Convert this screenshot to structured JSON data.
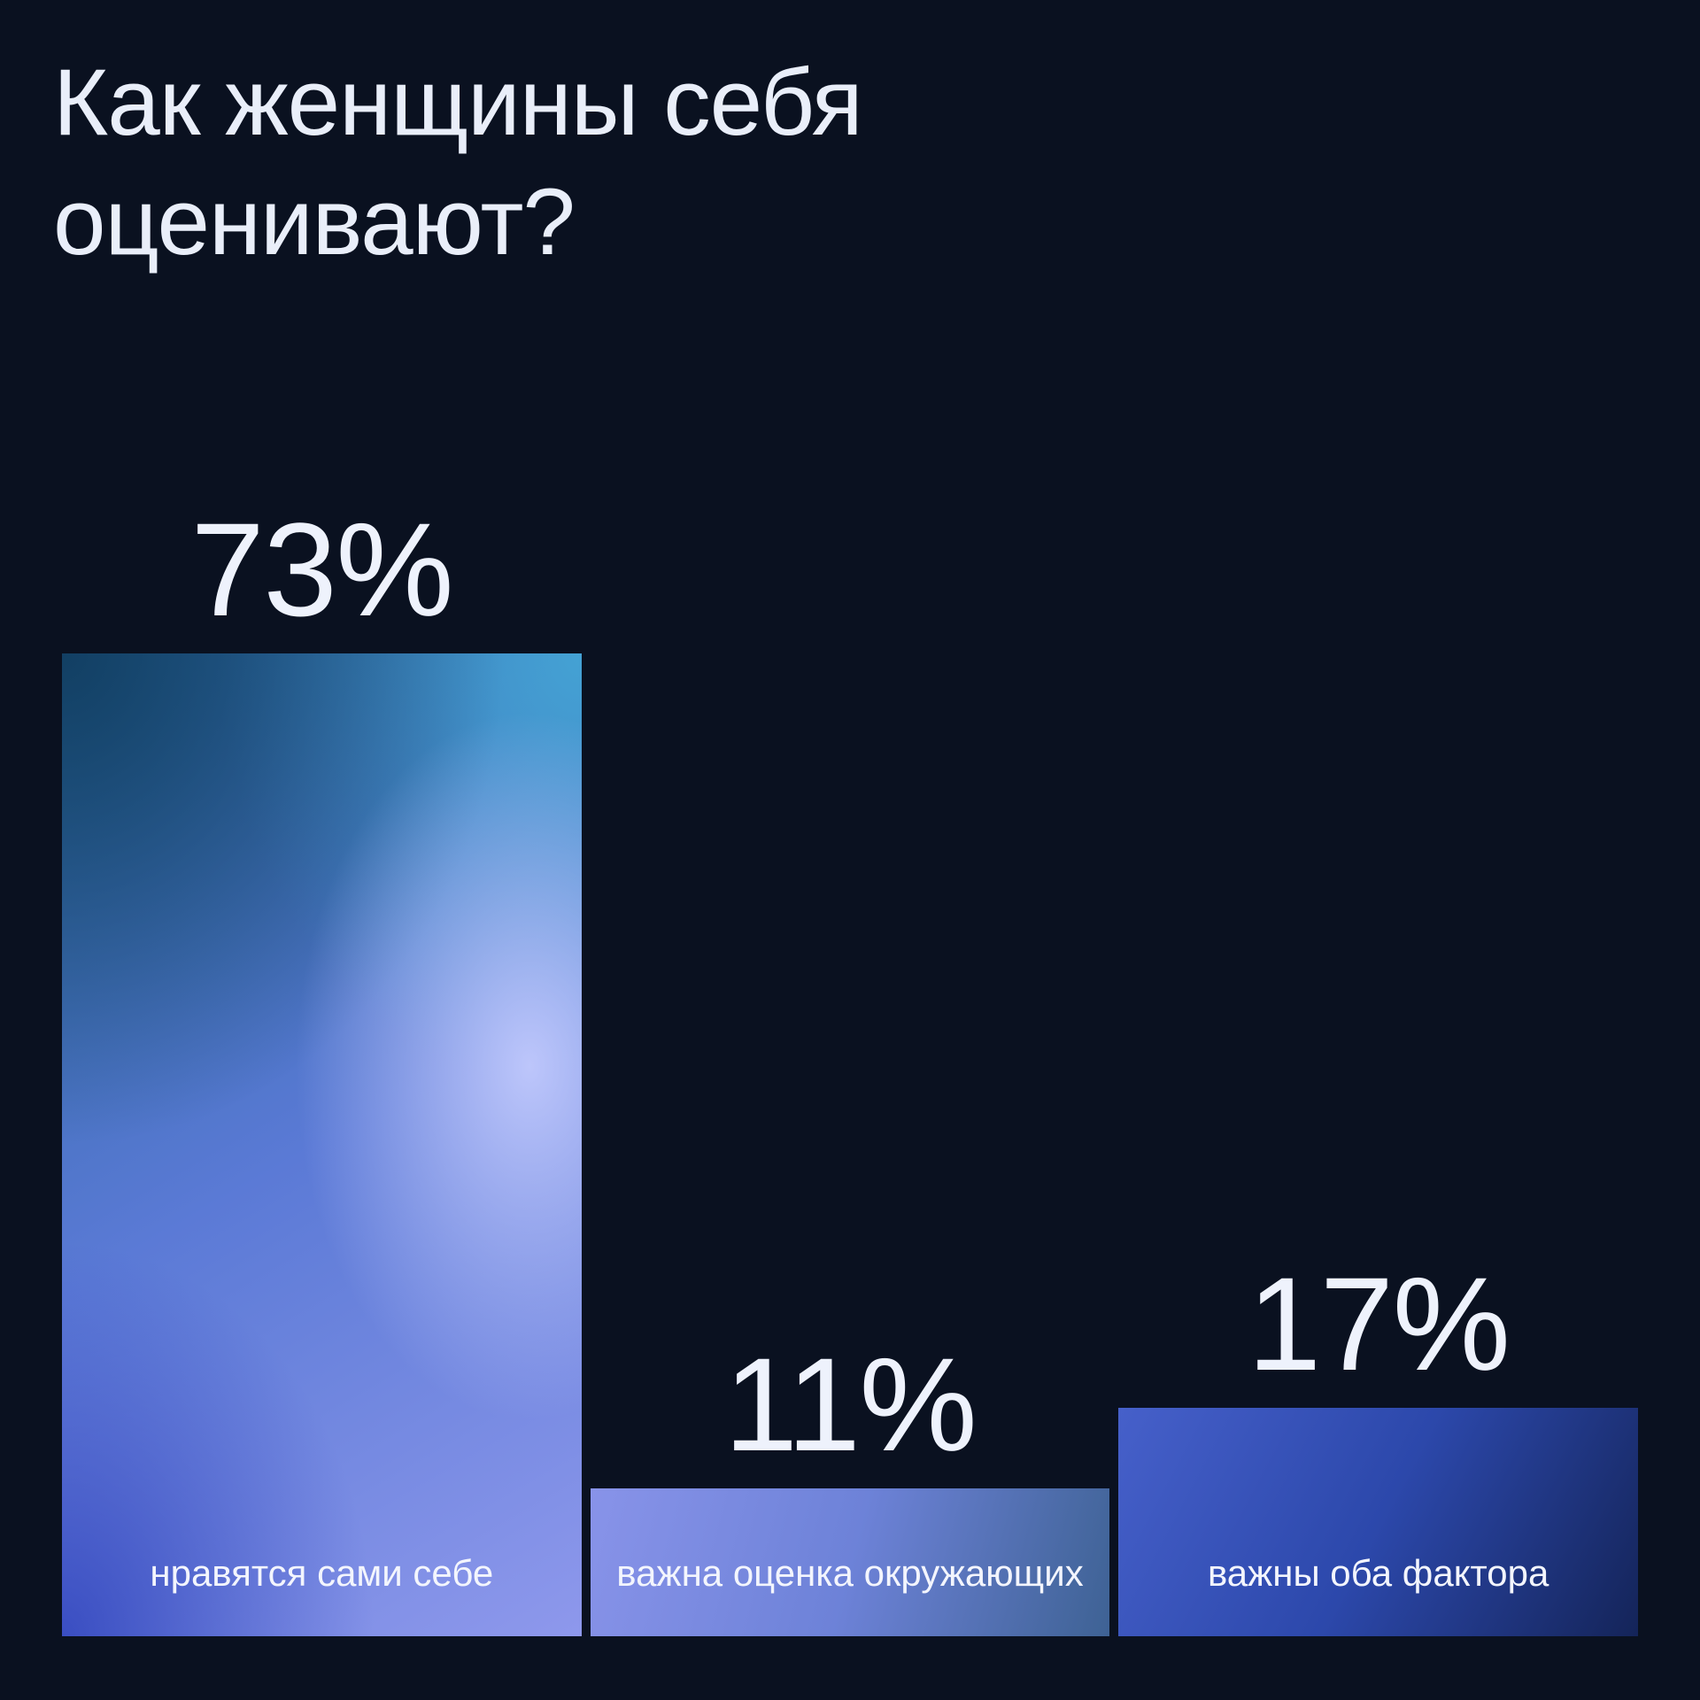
{
  "title": "Как женщины себя оценивают?",
  "colors": {
    "background": "#0a1120",
    "title_text": "#e9eef9",
    "value_text": "#eef2fc",
    "category_text": "#f3f5fd"
  },
  "chart_data": {
    "type": "bar",
    "title": "Как женщины себя оценивают?",
    "unit": "%",
    "categories": [
      "нравятся сами себе",
      "важна оценка окружающих",
      "важны оба фактора"
    ],
    "values": [
      73,
      11,
      17
    ],
    "ylim": [
      0,
      73
    ],
    "grid": false,
    "legend": false,
    "value_labels_position": "above-bars",
    "category_labels_position": "inside-bar-bottom",
    "bars": [
      {
        "value": 73,
        "value_label": "73%",
        "category": "нравятся сами себе",
        "gradient": {
          "angle": 150,
          "from": "#27689e",
          "mid": "#5b7ad6",
          "to": "#8e98ec",
          "highlight": "#bdc6fb",
          "corner_tl": "#123f63",
          "corner_tr": "#44a2d4",
          "corner_bl": "#3a4ec2"
        }
      },
      {
        "value": 11,
        "value_label": "11%",
        "category": "важна оценка окружающих",
        "gradient": {
          "angle": 105,
          "from": "#8893e9",
          "mid": "#6d82d8",
          "to": "#3e6294"
        }
      },
      {
        "value": 17,
        "value_label": "17%",
        "category": "важны оба фактора",
        "gradient": {
          "angle": 118,
          "from": "#4660ca",
          "mid": "#2c48ab",
          "to": "#142459"
        }
      }
    ]
  }
}
